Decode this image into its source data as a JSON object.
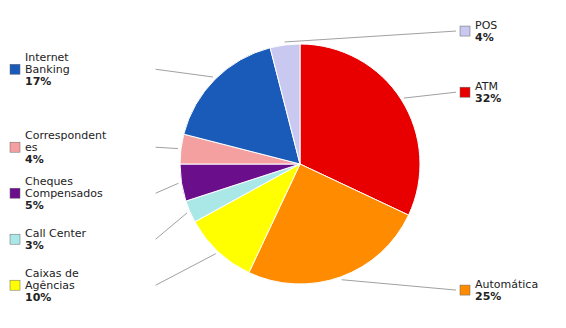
{
  "chart_data": {
    "type": "pie",
    "categories": [
      "ATM",
      "Automática",
      "Caixas de\nAgências",
      "Call Center",
      "Cheques\nCompensados",
      "Correspondent\nes",
      "Internet\nBanking",
      "POS"
    ],
    "values": [
      32,
      25,
      10,
      3,
      5,
      4,
      17,
      4
    ],
    "value_labels": [
      "32%",
      "25%",
      "10%",
      "3%",
      "5%",
      "4%",
      "17%",
      "4%"
    ],
    "colors": [
      "#e80000",
      "#ff8c00",
      "#ffff00",
      "#aae8e8",
      "#6b0e8c",
      "#f4a0a0",
      "#1a5ab8",
      "#c8c8f0"
    ]
  }
}
